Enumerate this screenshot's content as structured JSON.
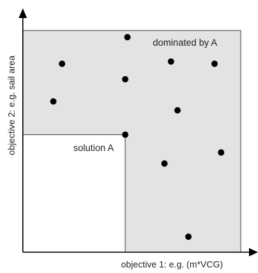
{
  "labels": {
    "x_axis": "objective 1: e.g. (m*VCG)",
    "y_axis": "objective 2: e.g. sail area",
    "region": "dominated by A",
    "solution": "solution A"
  },
  "colors": {
    "region_fill": "#e3e3e3",
    "region_stroke": "#444444",
    "axis": "#000000",
    "point": "#000000"
  },
  "diagram": {
    "solution_point": {
      "obj1": 0.47,
      "obj2": 0.53
    },
    "other_points": [
      {
        "obj1": 0.48,
        "obj2": 0.97
      },
      {
        "obj1": 0.18,
        "obj2": 0.85
      },
      {
        "obj1": 0.68,
        "obj2": 0.86
      },
      {
        "obj1": 0.88,
        "obj2": 0.85
      },
      {
        "obj1": 0.47,
        "obj2": 0.78
      },
      {
        "obj1": 0.14,
        "obj2": 0.68
      },
      {
        "obj1": 0.71,
        "obj2": 0.64
      },
      {
        "obj1": 0.91,
        "obj2": 0.45
      },
      {
        "obj1": 0.65,
        "obj2": 0.4
      },
      {
        "obj1": 0.76,
        "obj2": 0.07
      }
    ]
  }
}
